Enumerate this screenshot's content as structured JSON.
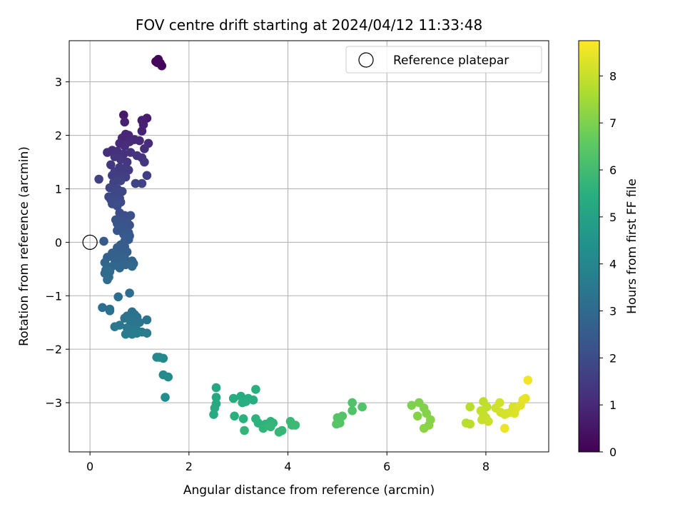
{
  "chart_data": {
    "type": "scatter",
    "title": "FOV centre drift starting at 2024/04/12 11:33:48",
    "xlabel": "Angular distance from reference (arcmin)",
    "ylabel": "Rotation from reference (arcmin)",
    "xlim": [
      -0.42,
      9.27
    ],
    "ylim": [
      -3.92,
      3.77
    ],
    "xticks": [
      0,
      2,
      4,
      6,
      8
    ],
    "yticks": [
      -3,
      -2,
      -1,
      0,
      1,
      2,
      3
    ],
    "grid": true,
    "legend": {
      "placement": "top-right",
      "entries": [
        {
          "label": "Reference platepar",
          "marker": "open-circle"
        }
      ]
    },
    "reference_point": {
      "x": 0,
      "y": 0
    },
    "colorbar": {
      "label": "Hours from first FF file",
      "colormap": "viridis",
      "range": [
        0,
        8.75
      ],
      "ticks": [
        0,
        1,
        2,
        3,
        4,
        5,
        6,
        7,
        8
      ]
    },
    "point_series": [
      [
        1.33,
        3.38,
        0.05
      ],
      [
        1.38,
        3.42,
        0.08
      ],
      [
        1.42,
        3.35,
        0.1
      ],
      [
        1.45,
        3.3,
        0.12
      ],
      [
        1.36,
        3.36,
        0.14
      ],
      [
        0.68,
        2.38,
        0.6
      ],
      [
        1.15,
        2.32,
        0.7
      ],
      [
        1.05,
        2.28,
        0.75
      ],
      [
        0.7,
        2.25,
        0.8
      ],
      [
        1.08,
        2.2,
        0.82
      ],
      [
        1.05,
        2.08,
        0.85
      ],
      [
        0.72,
        2.02,
        0.9
      ],
      [
        0.78,
        2.0,
        0.92
      ],
      [
        0.65,
        1.95,
        0.95
      ],
      [
        0.9,
        1.92,
        0.98
      ],
      [
        1.0,
        1.9,
        1.0
      ],
      [
        0.8,
        1.88,
        1.02
      ],
      [
        0.6,
        1.85,
        1.05
      ],
      [
        1.18,
        1.85,
        1.08
      ],
      [
        0.7,
        1.8,
        1.1
      ],
      [
        1.1,
        1.75,
        1.12
      ],
      [
        0.45,
        1.72,
        1.15
      ],
      [
        0.35,
        1.68,
        1.18
      ],
      [
        0.55,
        1.7,
        1.2
      ],
      [
        0.68,
        1.65,
        1.22
      ],
      [
        0.82,
        1.68,
        1.25
      ],
      [
        0.95,
        1.62,
        1.28
      ],
      [
        0.5,
        1.6,
        1.3
      ],
      [
        1.05,
        1.58,
        1.33
      ],
      [
        0.62,
        1.55,
        1.35
      ],
      [
        0.75,
        1.5,
        1.38
      ],
      [
        1.1,
        1.5,
        1.4
      ],
      [
        0.42,
        1.45,
        1.42
      ],
      [
        0.6,
        1.4,
        1.45
      ],
      [
        0.7,
        1.38,
        1.48
      ],
      [
        0.78,
        1.35,
        1.5
      ],
      [
        0.5,
        1.32,
        1.52
      ],
      [
        0.65,
        1.28,
        1.55
      ],
      [
        0.45,
        1.25,
        1.58
      ],
      [
        1.15,
        1.25,
        1.6
      ],
      [
        0.72,
        1.22,
        1.62
      ],
      [
        0.55,
        1.18,
        1.65
      ],
      [
        0.18,
        1.18,
        1.68
      ],
      [
        0.62,
        1.15,
        1.7
      ],
      [
        0.48,
        1.12,
        1.72
      ],
      [
        1.05,
        1.1,
        1.75
      ],
      [
        0.92,
        1.1,
        1.78
      ],
      [
        0.4,
        1.02,
        1.8
      ],
      [
        0.55,
        1.0,
        1.82
      ],
      [
        0.65,
        0.95,
        1.85
      ],
      [
        0.5,
        0.9,
        1.88
      ],
      [
        0.38,
        0.85,
        1.9
      ],
      [
        0.6,
        0.82,
        1.92
      ],
      [
        0.42,
        0.8,
        1.95
      ],
      [
        0.52,
        0.78,
        1.98
      ],
      [
        0.62,
        0.75,
        2.0
      ],
      [
        0.45,
        0.72,
        2.02
      ],
      [
        0.55,
        0.68,
        2.05
      ],
      [
        0.6,
        0.55,
        2.08
      ],
      [
        0.7,
        0.5,
        2.1
      ],
      [
        0.82,
        0.5,
        2.12
      ],
      [
        0.52,
        0.42,
        2.15
      ],
      [
        0.65,
        0.42,
        2.18
      ],
      [
        0.75,
        0.38,
        2.2
      ],
      [
        0.55,
        0.35,
        2.22
      ],
      [
        0.8,
        0.32,
        2.25
      ],
      [
        0.7,
        0.28,
        2.28
      ],
      [
        0.62,
        0.25,
        2.3
      ],
      [
        0.55,
        0.22,
        2.32
      ],
      [
        0.78,
        0.18,
        2.35
      ],
      [
        0.68,
        0.15,
        2.38
      ],
      [
        0.8,
        0.12,
        2.4
      ],
      [
        0.72,
        0.08,
        2.42
      ],
      [
        0.78,
        0.05,
        2.45
      ],
      [
        0.7,
        0.02,
        2.48
      ],
      [
        0.28,
        0.02,
        2.5
      ],
      [
        0.62,
        -0.05,
        2.52
      ],
      [
        0.7,
        -0.08,
        2.55
      ],
      [
        0.55,
        -0.1,
        2.58
      ],
      [
        0.65,
        -0.15,
        2.6
      ],
      [
        0.75,
        -0.18,
        2.62
      ],
      [
        0.45,
        -0.2,
        2.65
      ],
      [
        0.55,
        -0.25,
        2.68
      ],
      [
        0.35,
        -0.28,
        2.7
      ],
      [
        0.7,
        -0.3,
        2.72
      ],
      [
        0.5,
        -0.32,
        2.75
      ],
      [
        0.85,
        -0.35,
        2.78
      ],
      [
        0.6,
        -0.38,
        2.8
      ],
      [
        0.3,
        -0.38,
        2.82
      ],
      [
        0.88,
        -0.4,
        2.85
      ],
      [
        0.72,
        -0.42,
        2.88
      ],
      [
        0.45,
        -0.45,
        2.9
      ],
      [
        0.6,
        -0.48,
        2.92
      ],
      [
        0.85,
        -0.45,
        2.95
      ],
      [
        0.32,
        -0.52,
        2.98
      ],
      [
        0.4,
        -0.55,
        3.0
      ],
      [
        0.3,
        -0.58,
        3.02
      ],
      [
        0.38,
        -0.65,
        3.05
      ],
      [
        0.35,
        -0.7,
        3.08
      ],
      [
        0.8,
        -0.95,
        3.1
      ],
      [
        0.57,
        -1.02,
        3.12
      ],
      [
        0.25,
        -1.22,
        3.15
      ],
      [
        0.4,
        -1.25,
        3.18
      ],
      [
        0.4,
        -1.28,
        3.2
      ],
      [
        0.85,
        -1.3,
        3.22
      ],
      [
        0.9,
        -1.35,
        3.25
      ],
      [
        0.75,
        -1.38,
        3.28
      ],
      [
        0.95,
        -1.4,
        3.3
      ],
      [
        0.7,
        -1.42,
        3.32
      ],
      [
        1.15,
        -1.45,
        3.35
      ],
      [
        0.82,
        -1.48,
        3.38
      ],
      [
        1.0,
        -1.5,
        3.4
      ],
      [
        0.9,
        -1.52,
        3.42
      ],
      [
        0.6,
        -1.55,
        3.45
      ],
      [
        0.5,
        -1.58,
        3.48
      ],
      [
        0.75,
        -1.6,
        3.5
      ],
      [
        0.85,
        -1.62,
        3.52
      ],
      [
        0.95,
        -1.65,
        3.55
      ],
      [
        1.05,
        -1.68,
        3.58
      ],
      [
        1.15,
        -1.7,
        3.6
      ],
      [
        0.72,
        -1.72,
        3.62
      ],
      [
        0.85,
        -1.72,
        3.65
      ],
      [
        0.95,
        -1.7,
        3.68
      ],
      [
        1.35,
        -2.15,
        4.05
      ],
      [
        1.4,
        -2.15,
        4.08
      ],
      [
        1.48,
        -2.17,
        4.1
      ],
      [
        1.48,
        -2.48,
        4.12
      ],
      [
        1.58,
        -2.52,
        4.15
      ],
      [
        1.52,
        -2.9,
        4.2
      ],
      [
        2.55,
        -2.72,
        5.2
      ],
      [
        2.55,
        -2.9,
        5.22
      ],
      [
        2.55,
        -3.02,
        5.25
      ],
      [
        2.52,
        -3.1,
        5.28
      ],
      [
        2.5,
        -3.22,
        5.3
      ],
      [
        2.9,
        -2.92,
        5.35
      ],
      [
        3.05,
        -2.88,
        5.38
      ],
      [
        3.2,
        -2.92,
        5.4
      ],
      [
        3.3,
        -2.95,
        5.42
      ],
      [
        3.15,
        -2.98,
        5.45
      ],
      [
        3.08,
        -3.0,
        5.48
      ],
      [
        3.35,
        -2.75,
        5.5
      ],
      [
        2.92,
        -3.25,
        5.52
      ],
      [
        3.1,
        -3.3,
        5.55
      ],
      [
        3.35,
        -3.3,
        5.58
      ],
      [
        3.4,
        -3.38,
        5.6
      ],
      [
        3.55,
        -3.4,
        5.62
      ],
      [
        3.65,
        -3.35,
        5.65
      ],
      [
        3.7,
        -3.38,
        5.68
      ],
      [
        3.5,
        -3.48,
        5.7
      ],
      [
        3.12,
        -3.52,
        5.72
      ],
      [
        3.65,
        -3.45,
        5.75
      ],
      [
        3.82,
        -3.55,
        5.78
      ],
      [
        3.88,
        -3.52,
        5.8
      ],
      [
        4.05,
        -3.35,
        5.85
      ],
      [
        4.08,
        -3.42,
        5.88
      ],
      [
        4.15,
        -3.42,
        5.9
      ],
      [
        5.3,
        -3.0,
        6.25
      ],
      [
        5.3,
        -3.15,
        6.28
      ],
      [
        5.5,
        -3.08,
        6.3
      ],
      [
        5.1,
        -3.25,
        6.32
      ],
      [
        5.0,
        -3.28,
        6.35
      ],
      [
        5.05,
        -3.38,
        6.38
      ],
      [
        4.98,
        -3.4,
        6.4
      ],
      [
        6.5,
        -3.05,
        7.0
      ],
      [
        6.65,
        -3.0,
        7.02
      ],
      [
        6.75,
        -3.1,
        7.05
      ],
      [
        6.8,
        -3.2,
        7.08
      ],
      [
        6.62,
        -3.25,
        7.1
      ],
      [
        6.88,
        -3.32,
        7.12
      ],
      [
        6.85,
        -3.42,
        7.15
      ],
      [
        6.75,
        -3.48,
        7.18
      ],
      [
        7.68,
        -3.08,
        7.8
      ],
      [
        7.6,
        -3.38,
        7.82
      ],
      [
        7.68,
        -3.4,
        7.85
      ],
      [
        7.95,
        -2.98,
        7.9
      ],
      [
        8.02,
        -3.08,
        7.92
      ],
      [
        7.9,
        -3.15,
        7.95
      ],
      [
        7.95,
        -3.22,
        7.98
      ],
      [
        8.0,
        -3.28,
        8.0
      ],
      [
        7.92,
        -3.32,
        8.02
      ],
      [
        8.05,
        -3.35,
        8.05
      ],
      [
        8.2,
        -3.1,
        8.1
      ],
      [
        8.28,
        -3.0,
        8.12
      ],
      [
        8.3,
        -3.18,
        8.15
      ],
      [
        8.38,
        -3.22,
        8.18
      ],
      [
        8.42,
        -3.2,
        8.2
      ],
      [
        8.5,
        -3.18,
        8.22
      ],
      [
        8.55,
        -3.08,
        8.25
      ],
      [
        8.6,
        -3.12,
        8.28
      ],
      [
        8.58,
        -3.2,
        8.3
      ],
      [
        8.7,
        -3.05,
        8.35
      ],
      [
        8.75,
        -2.95,
        8.4
      ],
      [
        8.8,
        -2.92,
        8.45
      ],
      [
        8.38,
        -3.48,
        8.5
      ],
      [
        8.85,
        -2.58,
        8.6
      ]
    ]
  }
}
